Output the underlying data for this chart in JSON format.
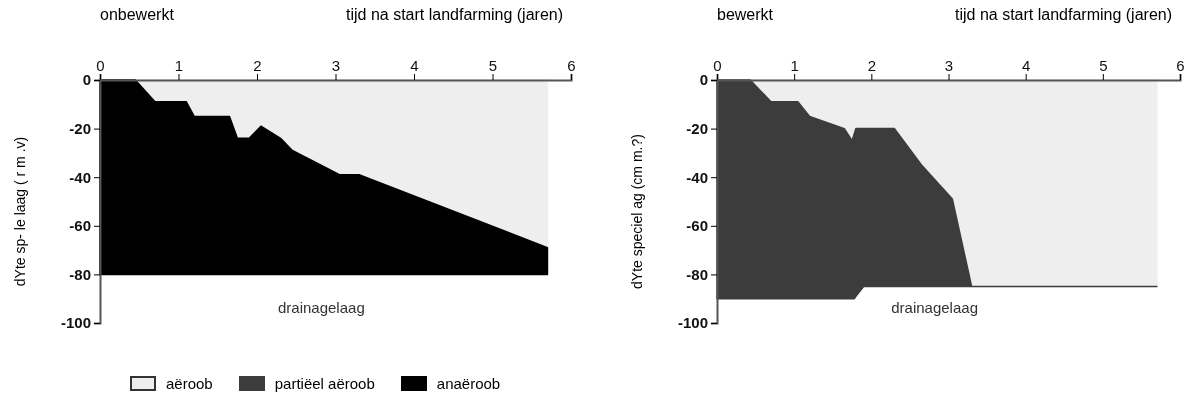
{
  "chart_data": [
    {
      "type": "area",
      "stacked": true,
      "title": "onbewerkt",
      "xlabel": "tijd na start landfarming (jaren)",
      "ylabel": "dYte sp- le laag ( r m .v)",
      "xlim": [
        0,
        6
      ],
      "xticks": [
        0,
        1,
        2,
        3,
        4,
        5,
        6
      ],
      "ylim": [
        -100,
        0
      ],
      "yticks": [
        0,
        -20,
        -40,
        -60,
        -80,
        -100
      ],
      "legend": "bottom",
      "annotations": [
        "drainagelaag"
      ],
      "x": [
        0,
        0.45,
        0.7,
        1.1,
        1.2,
        1.65,
        1.75,
        1.9,
        2.05,
        2.3,
        2.45,
        3.05,
        3.3,
        5.7
      ],
      "series": [
        {
          "name": "aëroob",
          "color": "#eeeeee",
          "values": [
            0,
            0,
            -9,
            -9,
            -15,
            -15,
            -24,
            -24,
            -19,
            -24,
            -29,
            -39,
            -39,
            -69
          ]
        },
        {
          "name": "anaëroob",
          "color": "#000000",
          "values": [
            -80,
            -80,
            -71,
            -71,
            -65,
            -65,
            -56,
            -56,
            -61,
            -56,
            -51,
            -41,
            -41,
            -11
          ]
        }
      ]
    },
    {
      "type": "area",
      "stacked": true,
      "title": "bewerkt",
      "xlabel": "tijd na start landfarming (jaren)",
      "ylabel": "dYte speciel ag (cm m.?)",
      "xlim": [
        0,
        6
      ],
      "xticks": [
        0,
        1,
        2,
        3,
        4,
        5,
        6
      ],
      "ylim": [
        -100,
        0
      ],
      "yticks": [
        0,
        -20,
        -40,
        -60,
        -80,
        -100
      ],
      "legend": "bottom",
      "annotations": [
        "drainagelaag"
      ],
      "x": [
        0,
        0.43,
        0.7,
        1.05,
        1.2,
        1.65,
        1.75,
        1.78,
        1.8,
        1.9,
        2.3,
        2.65,
        3.05,
        3.3,
        5.7
      ],
      "series": [
        {
          "color": "#eeeeee",
          "values": [
            0,
            0,
            -9,
            -9,
            -15,
            -20,
            -25,
            -22,
            -20,
            -20,
            -20,
            -35,
            -49,
            -85,
            -85
          ]
        },
        {
          "name": "partiëel aëroob",
          "color": "#3c3c3c",
          "values": [
            -90,
            -90,
            -81,
            -81,
            -75,
            -70,
            -65,
            -68,
            -69,
            -65,
            -65,
            -50,
            -36,
            0,
            0
          ]
        }
      ]
    }
  ]
}
